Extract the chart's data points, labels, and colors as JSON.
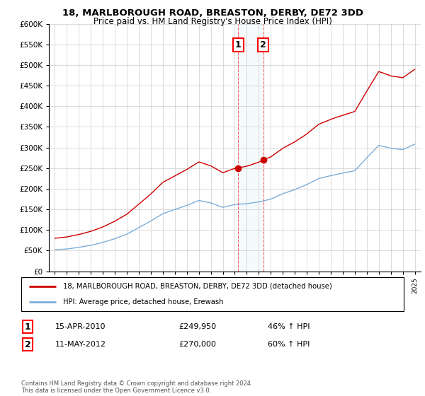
{
  "title": "18, MARLBOROUGH ROAD, BREASTON, DERBY, DE72 3DD",
  "subtitle": "Price paid vs. HM Land Registry's House Price Index (HPI)",
  "legend_line1": "18, MARLBOROUGH ROAD, BREASTON, DERBY, DE72 3DD (detached house)",
  "legend_line2": "HPI: Average price, detached house, Erewash",
  "transaction1_date": "15-APR-2010",
  "transaction1_price": "£249,950",
  "transaction1_hpi": "46% ↑ HPI",
  "transaction2_date": "11-MAY-2012",
  "transaction2_price": "£270,000",
  "transaction2_hpi": "60% ↑ HPI",
  "footer": "Contains HM Land Registry data © Crown copyright and database right 2024.\nThis data is licensed under the Open Government Licence v3.0.",
  "red_color": "#cc0000",
  "blue_color": "#7aaedb",
  "marker1_x": 2010.29,
  "marker2_x": 2012.37,
  "marker1_y": 249950,
  "marker2_y": 270000,
  "ylim_min": 0,
  "ylim_max": 600000,
  "xlim_min": 1994.5,
  "xlim_max": 2025.5,
  "yticks": [
    0,
    50000,
    100000,
    150000,
    200000,
    250000,
    300000,
    350000,
    400000,
    450000,
    500000,
    550000,
    600000
  ]
}
